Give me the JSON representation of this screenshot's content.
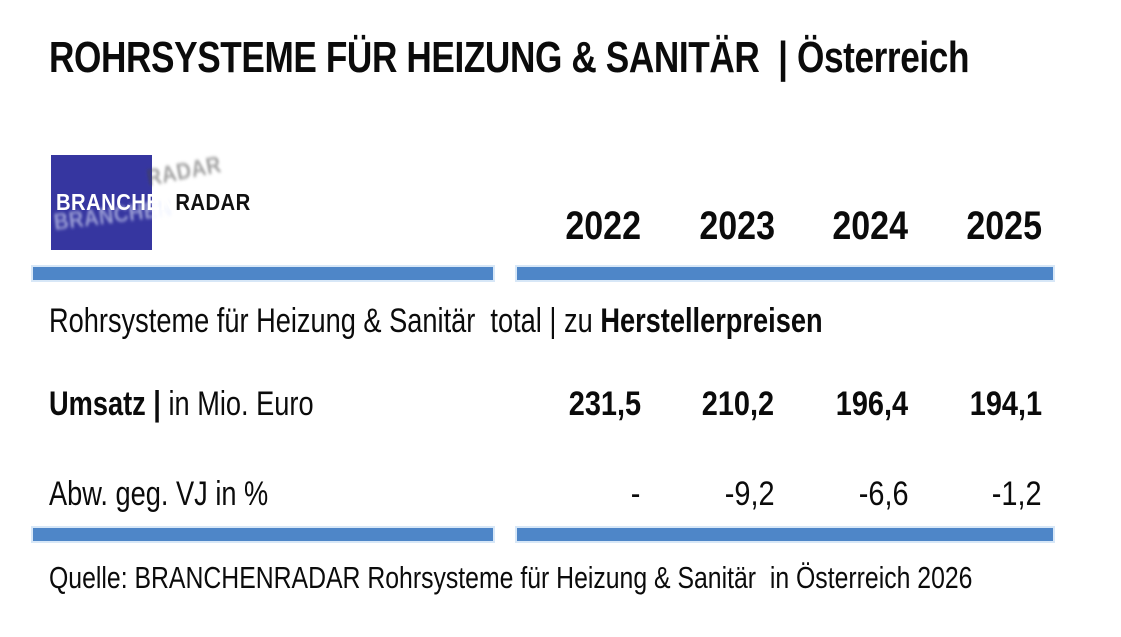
{
  "title": "ROHRSYSTEME FÜR HEIZUNG & SANITÄR  | Österreich",
  "logo": {
    "text_white": "BRANCHEN",
    "text_black": "RADAR"
  },
  "colors": {
    "divider_blue": "#4E86C8",
    "logo_blue": "#3636A0",
    "text": "#0B0B0B"
  },
  "table": {
    "year_headers": [
      "2022",
      "2023",
      "2024",
      "2025"
    ],
    "section_title": {
      "regular": "Rohrsysteme für Heizung & Sanitär  total | zu ",
      "bold": "Herstellerpreisen"
    },
    "rows": [
      {
        "label_bold": "Umsatz | ",
        "label_regular": "in Mio. Euro",
        "values": [
          "231,5",
          "210,2",
          "196,4",
          "194,1"
        ]
      },
      {
        "label_bold": "",
        "label_regular": "Abw. geg. VJ in %",
        "values": [
          "-",
          "-9,2",
          "-6,6",
          "-1,2"
        ]
      }
    ]
  },
  "source_line": "Quelle: BRANCHENRADAR Rohrsysteme für Heizung & Sanitär  in Österreich 2026"
}
